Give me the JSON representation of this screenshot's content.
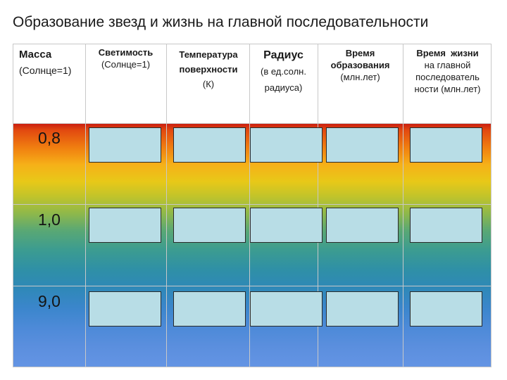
{
  "title": "Образование звезд и жизнь на главной последовательности",
  "headers": {
    "mass": {
      "line1": "Масса",
      "line2": "(Солнце=1)"
    },
    "luminosity": {
      "line1": "Светимость",
      "line2": "(Солнце=1)"
    },
    "temperature": {
      "line1": "Температура",
      "line2": "поверхности",
      "line3": "(К)"
    },
    "radius": {
      "line1": "Радиус",
      "line2": "(в ед.солн.",
      "line3": "радиуса)"
    },
    "formation_time": {
      "line1": "Время",
      "line2": "образования",
      "line3": "(млн.лет)"
    },
    "lifetime": {
      "line1": "Время  жизни",
      "line2": "на главной",
      "line3": "последователь",
      "line4": "ности (млн.лет)"
    }
  },
  "rows": [
    {
      "mass": "0,8"
    },
    {
      "mass": "1,0"
    },
    {
      "mass": "9,0"
    }
  ],
  "colors": {
    "gradient_top": "#c81a10",
    "gradient_middle": "#3c9c90",
    "gradient_bottom": "#6494e4",
    "cell_fill": "#b8dde6"
  }
}
